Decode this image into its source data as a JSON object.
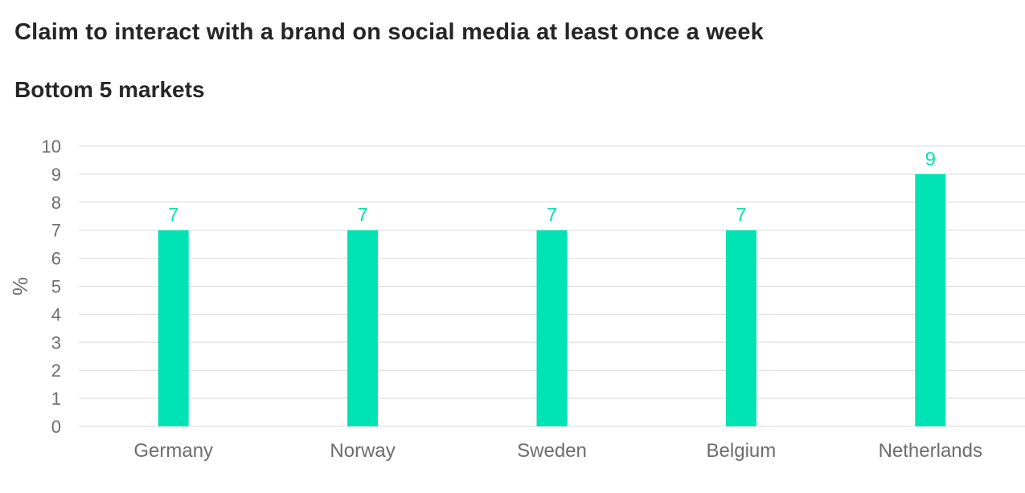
{
  "chart_data": {
    "type": "bar",
    "title": "Claim to interact with a brand on social media at least once a week",
    "subtitle": "Bottom 5 markets",
    "xlabel": "",
    "ylabel": "%",
    "categories": [
      "Germany",
      "Norway",
      "Sweden",
      "Belgium",
      "Netherlands"
    ],
    "values": [
      7,
      7,
      7,
      7,
      9
    ],
    "data_labels": [
      "7",
      "7",
      "7",
      "7",
      "9"
    ],
    "ylim": [
      0,
      10
    ],
    "yticks": [
      "0",
      "1",
      "2",
      "3",
      "4",
      "5",
      "6",
      "7",
      "8",
      "9",
      "10"
    ],
    "grid": true,
    "legend": "none",
    "bar_color": "#00e3b4",
    "label_color": "#00e3b4",
    "grid_color": "#d9d9d9"
  }
}
